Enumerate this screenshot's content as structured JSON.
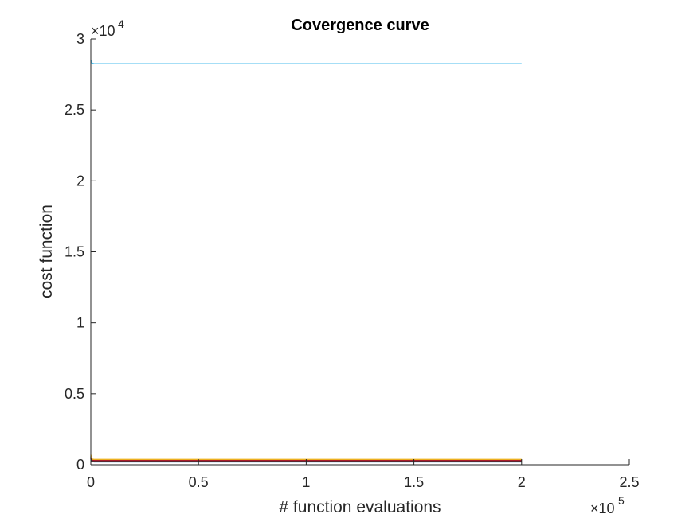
{
  "chart_data": {
    "type": "line",
    "title": "Covergence curve",
    "xlabel": "# function evaluations",
    "ylabel": "cost function",
    "xlim": [
      0,
      250000
    ],
    "ylim": [
      0,
      30000
    ],
    "x_ticks": [
      0,
      50000,
      100000,
      150000,
      200000,
      250000
    ],
    "x_tick_labels": [
      "0",
      "0.5",
      "1",
      "1.5",
      "2",
      "2.5"
    ],
    "y_ticks": [
      0,
      5000,
      10000,
      15000,
      20000,
      25000,
      30000
    ],
    "y_tick_labels": [
      "0",
      "0.5",
      "1",
      "1.5",
      "2",
      "2.5",
      "3"
    ],
    "x_exponent": {
      "base": "×10",
      "power": "5"
    },
    "y_exponent": {
      "base": "×10",
      "power": "4"
    },
    "grid": false,
    "series": [
      {
        "color": "#4DBEEE",
        "x": [
          0,
          500,
          1500,
          200000
        ],
        "y": [
          28500,
          28300,
          28250,
          28250
        ]
      },
      {
        "color": "#0072BD",
        "x": [
          0,
          300,
          1500,
          200000
        ],
        "y": [
          600,
          250,
          200,
          200
        ]
      },
      {
        "color": "#D95319",
        "x": [
          0,
          300,
          1500,
          200000
        ],
        "y": [
          550,
          350,
          330,
          330
        ]
      },
      {
        "color": "#EDB120",
        "x": [
          0,
          300,
          1500,
          200000
        ],
        "y": [
          700,
          400,
          370,
          370
        ]
      },
      {
        "color": "#7E2F8E",
        "x": [
          0,
          300,
          1500,
          200000
        ],
        "y": [
          500,
          280,
          260,
          260
        ]
      },
      {
        "color": "#77AC30",
        "x": [
          0,
          300,
          1500,
          200000
        ],
        "y": [
          450,
          270,
          240,
          240
        ]
      },
      {
        "color": "#A2142F",
        "x": [
          0,
          300,
          1500,
          200000
        ],
        "y": [
          480,
          310,
          290,
          290
        ]
      },
      {
        "color": "#333333",
        "x": [
          0,
          300,
          1500,
          200000
        ],
        "y": [
          420,
          230,
          220,
          220
        ]
      }
    ]
  }
}
